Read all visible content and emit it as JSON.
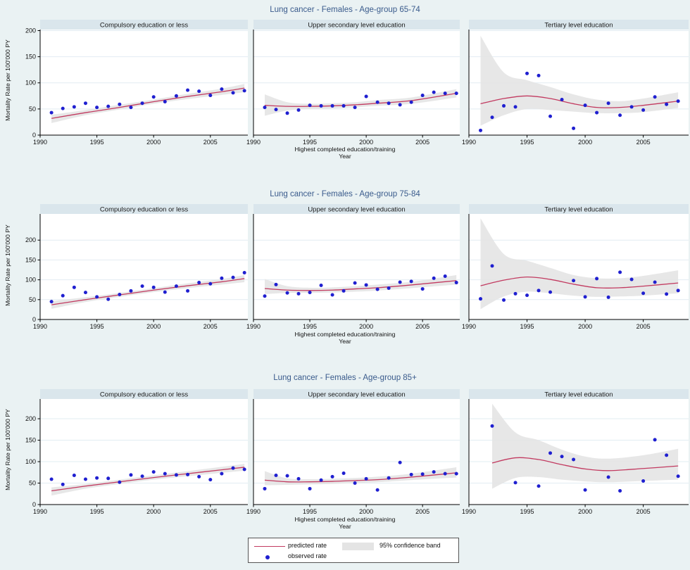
{
  "page": {
    "background": "#eaf2f3"
  },
  "colors": {
    "predicted_line": "#c23a60",
    "observed_dot": "#1f1fd0",
    "confidence_band": "#e4e4e4",
    "strip_bg": "#dae6ec",
    "row_title": "#3a5b8c",
    "plot_bg": "#ffffff",
    "grid": "#e2ecf2",
    "axis": "#000000"
  },
  "axes": {
    "y_label": "Mortality Rate per 100'000 PY",
    "x_label_line1": "Highest completed education/training",
    "x_label_line2": "Year",
    "x_ticks": [
      1990,
      1995,
      2000,
      2005
    ],
    "y_ticks": [
      0,
      50,
      100,
      150,
      200
    ]
  },
  "legend": {
    "predicted_label": "predicted rate",
    "observed_label": "observed rate",
    "band_label": "95% confidence band"
  },
  "chart_data": {
    "type": "scatter",
    "panel_headers": [
      "Compulsory education or less",
      "Upper secondary level education",
      "Tertiary level education"
    ],
    "rows": [
      {
        "title": "Lung cancer - Females - Age-group 65-74",
        "ylim": [
          0,
          202
        ],
        "panels": [
          {
            "observed": {
              "years": [
                1991,
                1992,
                1993,
                1994,
                1995,
                1996,
                1997,
                1998,
                1999,
                2000,
                2001,
                2002,
                2003,
                2004,
                2005,
                2006,
                2007,
                2008
              ],
              "values": [
                43,
                51,
                54,
                61,
                53,
                55,
                59,
                53,
                61,
                73,
                64,
                75,
                86,
                84,
                76,
                88,
                81,
                85
              ]
            },
            "predicted": {
              "x": [
                1991,
                1994,
                1997,
                2000,
                2003,
                2006,
                2008
              ],
              "y": [
                32,
                43,
                53,
                64,
                74,
                83,
                90
              ]
            },
            "band": {
              "x": [
                1991,
                1994,
                1997,
                2000,
                2003,
                2006,
                2008
              ],
              "lo": [
                23,
                38,
                49,
                60,
                69,
                77,
                82
              ],
              "hi": [
                39,
                48,
                58,
                68,
                79,
                89,
                98
              ]
            }
          },
          {
            "observed": {
              "years": [
                1991,
                1992,
                1993,
                1994,
                1995,
                1996,
                1997,
                1998,
                1999,
                2000,
                2001,
                2002,
                2003,
                2004,
                2005,
                2006,
                2007,
                2008
              ],
              "values": [
                53,
                49,
                42,
                48,
                57,
                56,
                56,
                56,
                53,
                74,
                63,
                61,
                58,
                63,
                76,
                82,
                80,
                80
              ]
            },
            "predicted": {
              "x": [
                1991,
                1993,
                1995,
                1997,
                1999,
                2001,
                2004,
                2008
              ],
              "y": [
                57,
                55,
                55,
                56,
                58,
                61,
                66,
                80
              ]
            },
            "band": {
              "x": [
                1991,
                1993,
                1995,
                1997,
                1999,
                2001,
                2004,
                2008
              ],
              "lo": [
                37,
                47,
                50,
                51,
                53,
                56,
                60,
                72
              ],
              "hi": [
                78,
                63,
                60,
                61,
                63,
                67,
                72,
                88
              ]
            }
          },
          {
            "observed": {
              "years": [
                1991,
                1992,
                1993,
                1994,
                1995,
                1996,
                1997,
                1998,
                1999,
                2000,
                2001,
                2002,
                2003,
                2004,
                2005,
                2006,
                2007,
                2008
              ],
              "values": [
                9,
                34,
                56,
                54,
                118,
                114,
                36,
                68,
                13,
                57,
                43,
                61,
                38,
                54,
                48,
                73,
                59,
                65
              ]
            },
            "predicted": {
              "x": [
                1991,
                1993,
                1995,
                1997,
                1999,
                2001,
                2003,
                2005,
                2008
              ],
              "y": [
                60,
                70,
                75,
                70,
                60,
                53,
                53,
                57,
                65
              ]
            },
            "band": {
              "x": [
                1991,
                1993,
                1995,
                1997,
                1999,
                2001,
                2003,
                2005,
                2008
              ],
              "lo": [
                18,
                38,
                50,
                48,
                45,
                42,
                42,
                44,
                52
              ],
              "hi": [
                190,
                120,
                105,
                92,
                78,
                68,
                65,
                70,
                82
              ]
            }
          }
        ]
      },
      {
        "title": "Lung cancer - Females - Age-group 75-84",
        "ylim": [
          0,
          266
        ],
        "panels": [
          {
            "observed": {
              "years": [
                1991,
                1992,
                1993,
                1994,
                1995,
                1996,
                1997,
                1998,
                1999,
                2000,
                2001,
                2002,
                2003,
                2004,
                2005,
                2006,
                2007,
                2008
              ],
              "values": [
                45,
                60,
                81,
                68,
                57,
                51,
                63,
                72,
                84,
                81,
                69,
                84,
                72,
                93,
                90,
                104,
                106,
                118
              ]
            },
            "predicted": {
              "x": [
                1991,
                1994,
                1997,
                2000,
                2003,
                2006,
                2008
              ],
              "y": [
                37,
                50,
                62,
                74,
                85,
                95,
                103
              ]
            },
            "band": {
              "x": [
                1991,
                1994,
                1997,
                2000,
                2003,
                2006,
                2008
              ],
              "lo": [
                27,
                44,
                57,
                69,
                79,
                88,
                94
              ],
              "hi": [
                46,
                56,
                67,
                79,
                91,
                102,
                112
              ]
            }
          },
          {
            "observed": {
              "years": [
                1991,
                1992,
                1993,
                1994,
                1995,
                1996,
                1997,
                1998,
                1999,
                2000,
                2001,
                2002,
                2003,
                2004,
                2005,
                2006,
                2007,
                2008
              ],
              "values": [
                59,
                88,
                67,
                65,
                68,
                86,
                62,
                72,
                92,
                87,
                76,
                79,
                94,
                96,
                77,
                104,
                109,
                93
              ]
            },
            "predicted": {
              "x": [
                1991,
                1993,
                1995,
                1997,
                1999,
                2001,
                2004,
                2008
              ],
              "y": [
                78,
                74,
                73,
                74,
                77,
                80,
                87,
                98
              ]
            },
            "band": {
              "x": [
                1991,
                1993,
                1995,
                1997,
                1999,
                2001,
                2004,
                2008
              ],
              "lo": [
                64,
                67,
                67,
                68,
                70,
                73,
                79,
                88
              ],
              "hi": [
                102,
                84,
                80,
                81,
                84,
                88,
                95,
                112
              ]
            }
          },
          {
            "observed": {
              "years": [
                1991,
                1992,
                1993,
                1994,
                1995,
                1996,
                1997,
                1999,
                2000,
                2001,
                2002,
                2003,
                2004,
                2005,
                2006,
                2007,
                2008
              ],
              "values": [
                52,
                135,
                49,
                65,
                61,
                73,
                69,
                98,
                57,
                103,
                56,
                119,
                101,
                66,
                94,
                64,
                73
              ]
            },
            "predicted": {
              "x": [
                1991,
                1993,
                1995,
                1997,
                1999,
                2001,
                2003,
                2005,
                2008
              ],
              "y": [
                85,
                99,
                107,
                101,
                89,
                80,
                80,
                84,
                92
              ]
            },
            "band": {
              "x": [
                1991,
                1993,
                1995,
                1997,
                1999,
                2001,
                2003,
                2005,
                2008
              ],
              "lo": [
                26,
                58,
                70,
                66,
                60,
                57,
                58,
                60,
                66
              ],
              "hi": [
                255,
                165,
                148,
                130,
                112,
                104,
                104,
                110,
                124
              ]
            }
          }
        ]
      },
      {
        "title": "Lung cancer - Females - Age-group 85+",
        "ylim": [
          0,
          246
        ],
        "panels": [
          {
            "observed": {
              "years": [
                1991,
                1992,
                1993,
                1994,
                1995,
                1996,
                1997,
                1998,
                1999,
                2000,
                2001,
                2002,
                2003,
                2004,
                2005,
                2006,
                2007,
                2008
              ],
              "values": [
                59,
                47,
                68,
                59,
                62,
                61,
                52,
                69,
                66,
                76,
                72,
                69,
                70,
                65,
                58,
                72,
                85,
                82
              ]
            },
            "predicted": {
              "x": [
                1991,
                1994,
                1997,
                2000,
                2003,
                2006,
                2008
              ],
              "y": [
                32,
                43,
                53,
                63,
                72,
                81,
                87
              ]
            },
            "band": {
              "x": [
                1991,
                1994,
                1997,
                2000,
                2003,
                2006,
                2008
              ],
              "lo": [
                21,
                37,
                48,
                58,
                66,
                74,
                79
              ],
              "hi": [
                40,
                48,
                58,
                68,
                78,
                88,
                95
              ]
            }
          },
          {
            "observed": {
              "years": [
                1991,
                1992,
                1993,
                1994,
                1995,
                1996,
                1997,
                1998,
                1999,
                2000,
                2001,
                2002,
                2003,
                2004,
                2005,
                2006,
                2007,
                2008
              ],
              "values": [
                37,
                68,
                67,
                60,
                37,
                57,
                65,
                73,
                50,
                60,
                34,
                62,
                98,
                70,
                71,
                76,
                72,
                72
              ]
            },
            "predicted": {
              "x": [
                1991,
                1993,
                1995,
                1997,
                1999,
                2001,
                2004,
                2008
              ],
              "y": [
                57,
                53,
                53,
                54,
                56,
                58,
                64,
                74
              ]
            },
            "band": {
              "x": [
                1991,
                1993,
                1995,
                1997,
                1999,
                2001,
                2004,
                2008
              ],
              "lo": [
                45,
                46,
                47,
                48,
                50,
                52,
                57,
                63
              ],
              "hi": [
                78,
                61,
                59,
                60,
                62,
                65,
                72,
                87
              ]
            }
          },
          {
            "observed": {
              "years": [
                1992,
                1994,
                1996,
                1997,
                1998,
                1999,
                2000,
                2002,
                2003,
                2005,
                2006,
                2007,
                2008
              ],
              "values": [
                183,
                51,
                43,
                120,
                112,
                105,
                34,
                64,
                32,
                55,
                151,
                115,
                66
              ]
            },
            "predicted": {
              "x": [
                1992,
                1994,
                1996,
                1998,
                2000,
                2002,
                2005,
                2008
              ],
              "y": [
                97,
                109,
                105,
                93,
                83,
                79,
                84,
                90
              ]
            },
            "band": {
              "x": [
                1992,
                1994,
                1996,
                1998,
                2000,
                2002,
                2005,
                2008
              ],
              "lo": [
                37,
                62,
                64,
                58,
                54,
                52,
                55,
                58
              ],
              "hi": [
                235,
                168,
                150,
                128,
                112,
                107,
                115,
                130
              ]
            }
          }
        ]
      }
    ]
  }
}
